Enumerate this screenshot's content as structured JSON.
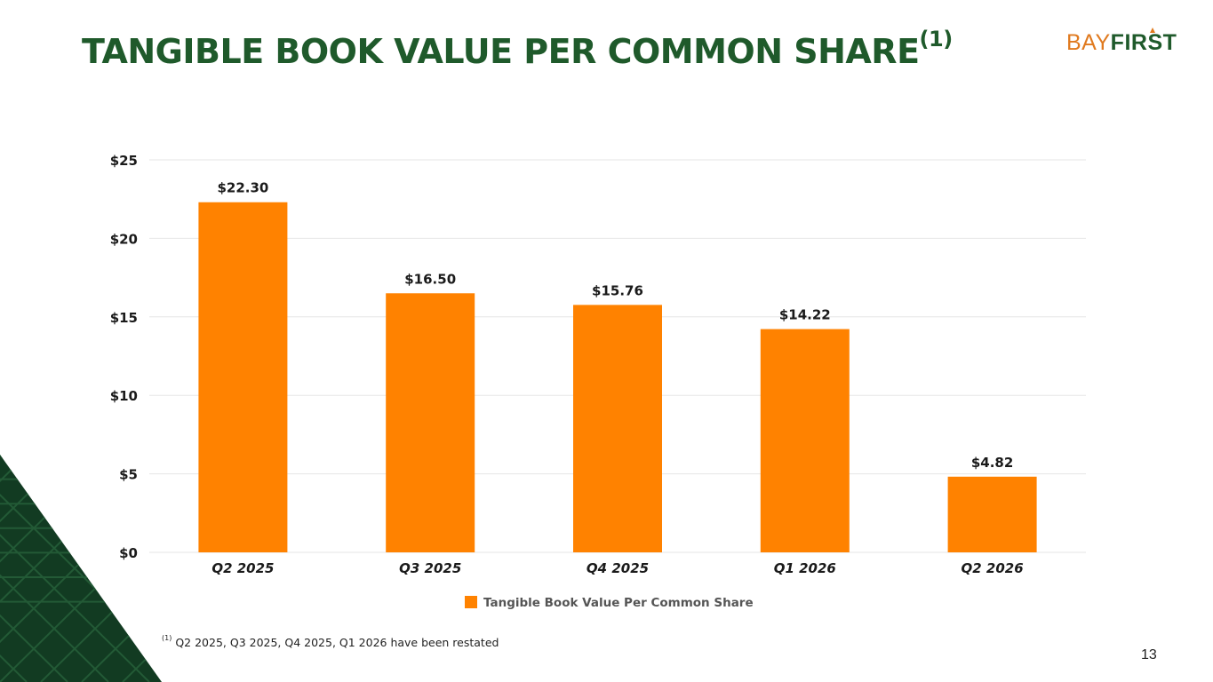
{
  "slide": {
    "title": "TANGIBLE BOOK VALUE PER COMMON SHARE",
    "title_superscript": "(1)",
    "logo_bay": "BAY",
    "logo_first": "FIRST",
    "footnote_marker": "(1)",
    "footnote_text": "Q2 2025, Q3 2025, Q4 2025, Q1 2026 have been restated",
    "page_number": "13"
  },
  "colors": {
    "title": "#1f5a2b",
    "bar": "#ff8200",
    "grid": "#e6e6e6",
    "corner_dark": "#123b22",
    "corner_line": "#235a36"
  },
  "chart_data": {
    "type": "bar",
    "categories": [
      "Q2 2025",
      "Q3 2025",
      "Q4 2025",
      "Q1 2026",
      "Q2 2026"
    ],
    "series": [
      {
        "name": "Tangible Book Value Per Common Share",
        "values": [
          22.3,
          16.5,
          15.76,
          14.22,
          4.82
        ],
        "labels": [
          "$22.30",
          "$16.50",
          "$15.76",
          "$14.22",
          "$4.82"
        ]
      }
    ],
    "ylim": [
      0,
      25
    ],
    "yticks": [
      0,
      5,
      10,
      15,
      20,
      25
    ],
    "ytick_labels": [
      "$0",
      "$5",
      "$10",
      "$15",
      "$20",
      "$25"
    ],
    "grid": true,
    "legend_position": "bottom"
  }
}
